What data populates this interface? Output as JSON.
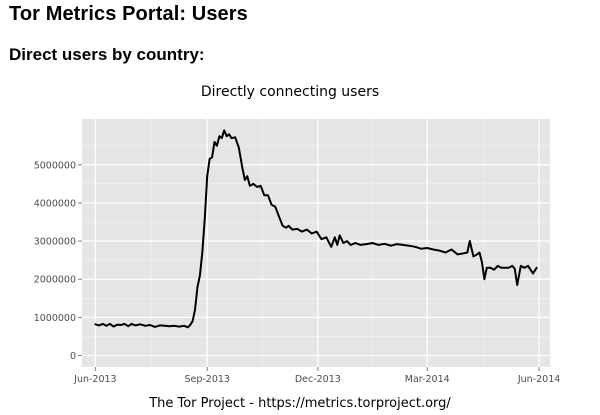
{
  "header": {
    "title": "Tor Metrics Portal: Users",
    "subtitle": "Direct users by country:"
  },
  "footer": {
    "credit": "The Tor Project - https://metrics.torproject.org/"
  },
  "chart_data": {
    "type": "line",
    "title": "Directly connecting users",
    "xlabel": "",
    "ylabel": "",
    "x_tick_labels": [
      "Jun-2013",
      "Sep-2013",
      "Dec-2013",
      "Mar-2014",
      "Jun-2014"
    ],
    "x_ticks": [
      "2013-06-01",
      "2013-09-01",
      "2013-12-01",
      "2014-03-01",
      "2014-06-01"
    ],
    "y_tick_labels": [
      "0",
      "1000000",
      "2000000",
      "3000000",
      "4000000",
      "5000000"
    ],
    "y_ticks": [
      0,
      1000000,
      2000000,
      3000000,
      4000000,
      5000000
    ],
    "xlim": [
      "2013-05-21",
      "2014-06-10"
    ],
    "ylim": [
      -300000,
      6200000
    ],
    "grid": true,
    "legend": "none",
    "colors": {
      "panel": "#e5e5e5",
      "grid": "#ffffff",
      "line": "#000000",
      "tick_text": "#4d4d4d"
    },
    "series": [
      {
        "name": "",
        "x": [
          "2013-06-01",
          "2013-06-04",
          "2013-06-07",
          "2013-06-10",
          "2013-06-13",
          "2013-06-16",
          "2013-06-19",
          "2013-06-22",
          "2013-06-25",
          "2013-06-28",
          "2013-07-01",
          "2013-07-04",
          "2013-07-08",
          "2013-07-12",
          "2013-07-16",
          "2013-07-20",
          "2013-07-24",
          "2013-07-28",
          "2013-08-01",
          "2013-08-05",
          "2013-08-09",
          "2013-08-13",
          "2013-08-16",
          "2013-08-18",
          "2013-08-20",
          "2013-08-22",
          "2013-08-24",
          "2013-08-26",
          "2013-08-28",
          "2013-08-30",
          "2013-09-01",
          "2013-09-03",
          "2013-09-05",
          "2013-09-07",
          "2013-09-09",
          "2013-09-11",
          "2013-09-13",
          "2013-09-15",
          "2013-09-17",
          "2013-09-19",
          "2013-09-21",
          "2013-09-24",
          "2013-09-27",
          "2013-09-30",
          "2013-10-02",
          "2013-10-04",
          "2013-10-06",
          "2013-10-09",
          "2013-10-12",
          "2013-10-15",
          "2013-10-18",
          "2013-10-21",
          "2013-10-24",
          "2013-10-27",
          "2013-10-30",
          "2013-11-02",
          "2013-11-05",
          "2013-11-07",
          "2013-11-10",
          "2013-11-14",
          "2013-11-18",
          "2013-11-22",
          "2013-11-26",
          "2013-11-30",
          "2013-12-04",
          "2013-12-08",
          "2013-12-12",
          "2013-12-15",
          "2013-12-17",
          "2013-12-19",
          "2013-12-22",
          "2013-12-25",
          "2013-12-28",
          "2014-01-01",
          "2014-01-05",
          "2014-01-10",
          "2014-01-15",
          "2014-01-20",
          "2014-01-25",
          "2014-01-30",
          "2014-02-04",
          "2014-02-09",
          "2014-02-14",
          "2014-02-19",
          "2014-02-24",
          "2014-03-01",
          "2014-03-06",
          "2014-03-11",
          "2014-03-16",
          "2014-03-21",
          "2014-03-26",
          "2014-03-31",
          "2014-04-03",
          "2014-04-05",
          "2014-04-08",
          "2014-04-11",
          "2014-04-13",
          "2014-04-15",
          "2014-04-17",
          "2014-04-19",
          "2014-04-22",
          "2014-04-25",
          "2014-04-28",
          "2014-05-01",
          "2014-05-04",
          "2014-05-07",
          "2014-05-10",
          "2014-05-12",
          "2014-05-14",
          "2014-05-17",
          "2014-05-20",
          "2014-05-23",
          "2014-05-27",
          "2014-05-30"
        ],
        "y": [
          820000,
          790000,
          830000,
          780000,
          830000,
          760000,
          810000,
          800000,
          830000,
          770000,
          830000,
          790000,
          820000,
          780000,
          800000,
          750000,
          790000,
          780000,
          770000,
          780000,
          760000,
          780000,
          740000,
          800000,
          900000,
          1200000,
          1800000,
          2100000,
          2700000,
          3600000,
          4700000,
          5150000,
          5200000,
          5600000,
          5500000,
          5750000,
          5700000,
          5900000,
          5750000,
          5800000,
          5700000,
          5720000,
          5450000,
          4900000,
          4600000,
          4700000,
          4450000,
          4500000,
          4420000,
          4450000,
          4200000,
          4200000,
          3950000,
          3900000,
          3650000,
          3400000,
          3350000,
          3400000,
          3300000,
          3320000,
          3250000,
          3300000,
          3200000,
          3250000,
          3050000,
          3100000,
          2850000,
          3100000,
          2900000,
          3150000,
          2950000,
          3000000,
          2900000,
          2950000,
          2900000,
          2920000,
          2950000,
          2900000,
          2930000,
          2880000,
          2920000,
          2900000,
          2880000,
          2850000,
          2800000,
          2820000,
          2780000,
          2750000,
          2700000,
          2780000,
          2650000,
          2680000,
          2700000,
          3000000,
          2600000,
          2650000,
          2700000,
          2450000,
          2000000,
          2300000,
          2300000,
          2250000,
          2350000,
          2300000,
          2300000,
          2300000,
          2350000,
          2280000,
          1850000,
          2350000,
          2300000,
          2350000,
          2150000,
          2300000
        ]
      }
    ]
  }
}
